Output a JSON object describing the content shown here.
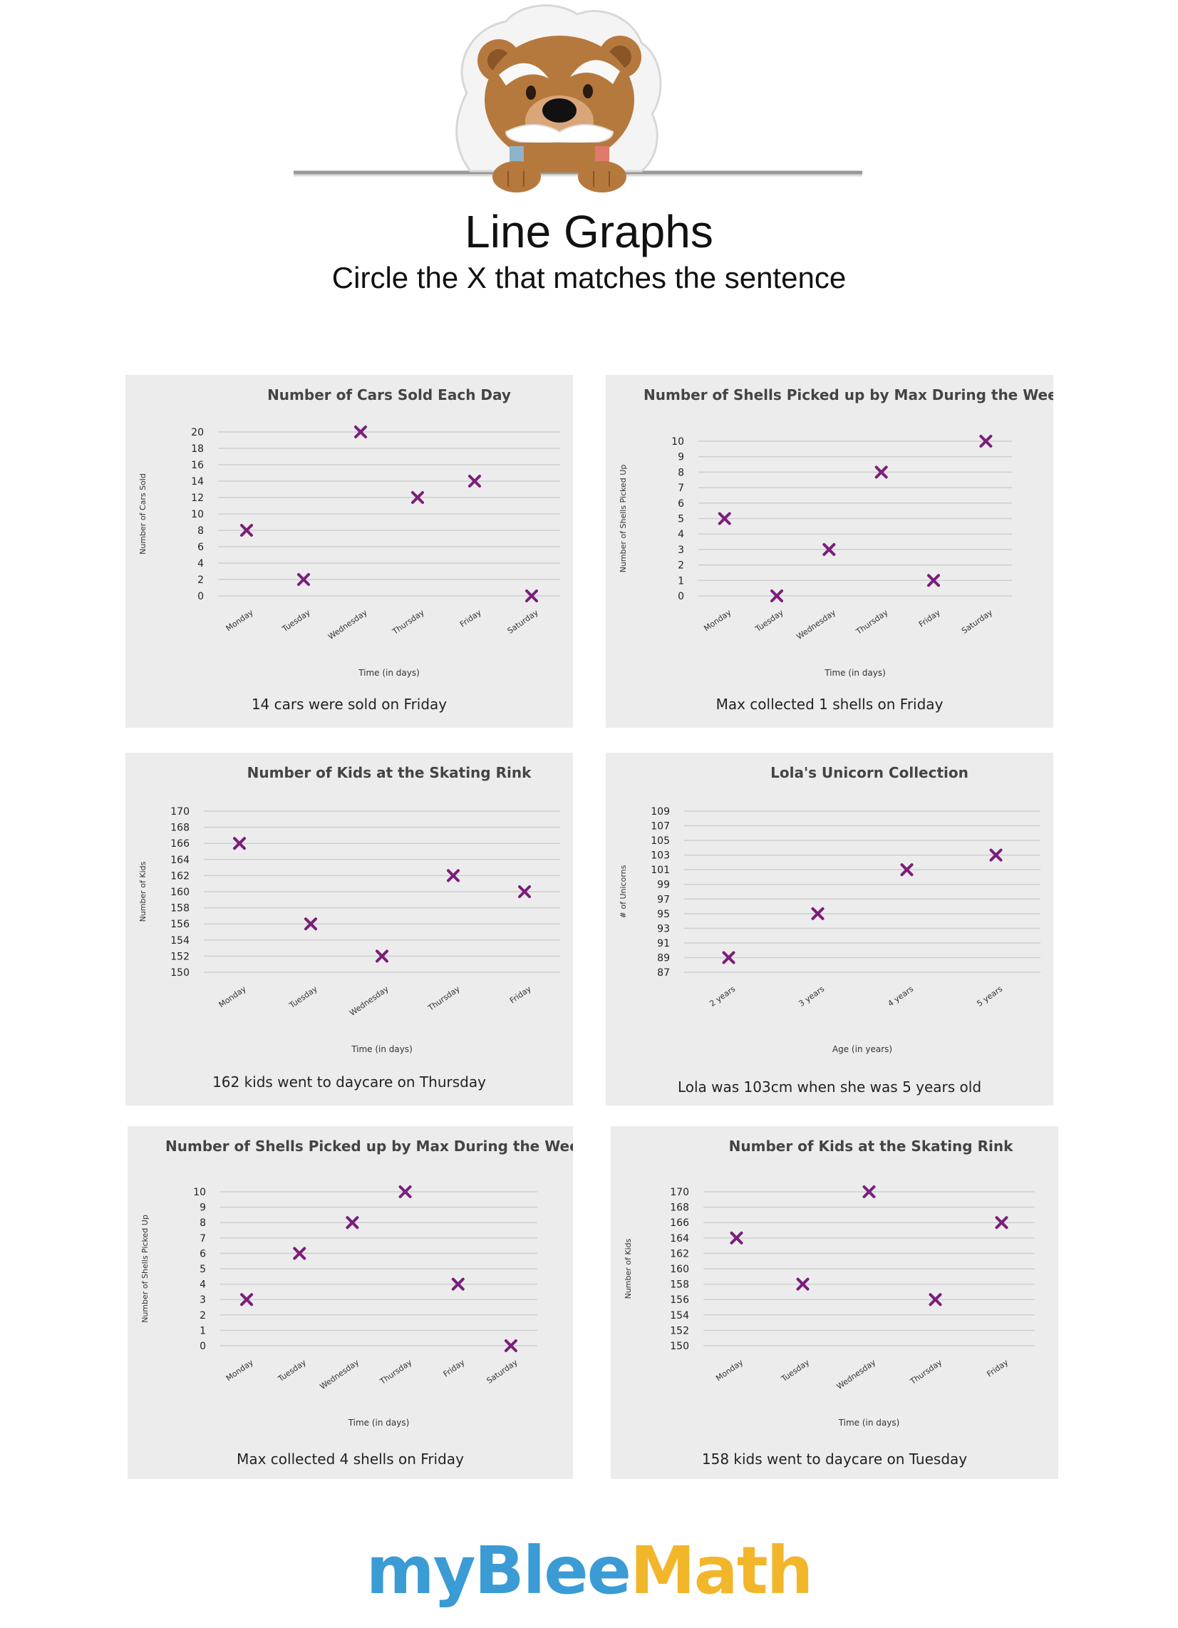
{
  "header": {
    "title": "Line Graphs",
    "subtitle": "Circle the X that matches the sentence"
  },
  "logo": {
    "part1": "myBlee",
    "part2": "Math"
  },
  "colors": {
    "marker": "#7b1e7a",
    "panel": "#ececec",
    "grid": "#cfcfcf"
  },
  "chart_data": [
    {
      "type": "scatter",
      "title": "Number of Cars Sold Each Day",
      "xlabel": "Time (in days)",
      "ylabel": "Number of Cars Sold",
      "categories": [
        "Monday",
        "Tuesday",
        "Wednesday",
        "Thursday",
        "Friday",
        "Saturday"
      ],
      "values": [
        8,
        2,
        20,
        12,
        14,
        0
      ],
      "yticks": [
        0,
        2,
        4,
        6,
        8,
        10,
        12,
        14,
        16,
        18,
        20
      ],
      "ylim": [
        0,
        20
      ],
      "grid": true,
      "caption": "14 cars were sold on Friday"
    },
    {
      "type": "scatter",
      "title": "Number of Shells Picked up by Max During the Week",
      "xlabel": "Time (in days)",
      "ylabel": "Number of Shells Picked Up",
      "categories": [
        "Monday",
        "Tuesday",
        "Wednesday",
        "Thursday",
        "Friday",
        "Saturday"
      ],
      "values": [
        5,
        0,
        3,
        8,
        1,
        10
      ],
      "yticks": [
        0,
        1,
        2,
        3,
        4,
        5,
        6,
        7,
        8,
        9,
        10
      ],
      "ylim": [
        0,
        10
      ],
      "grid": true,
      "caption": "Max collected 1 shells on Friday"
    },
    {
      "type": "scatter",
      "title": "Number of Kids at the Skating Rink",
      "xlabel": "Time (in days)",
      "ylabel": "Number of Kids",
      "categories": [
        "Monday",
        "Tuesday",
        "Wednesday",
        "Thursday",
        "Friday"
      ],
      "values": [
        166,
        156,
        152,
        162,
        160
      ],
      "yticks": [
        150,
        152,
        154,
        156,
        158,
        160,
        162,
        164,
        166,
        168,
        170
      ],
      "ylim": [
        150,
        170
      ],
      "grid": true,
      "caption": "162 kids went to daycare on Thursday"
    },
    {
      "type": "scatter",
      "title": "Lola's Unicorn Collection",
      "xlabel": "Age (in years)",
      "ylabel": "# of Unicorns",
      "categories": [
        "2 years",
        "3 years",
        "4 years",
        "5 years"
      ],
      "values": [
        89,
        95,
        101,
        103
      ],
      "yticks": [
        87,
        89,
        91,
        93,
        95,
        97,
        99,
        101,
        103,
        105,
        107,
        109
      ],
      "ylim": [
        87,
        109
      ],
      "grid": true,
      "caption": "Lola was 103cm when she was 5 years old"
    },
    {
      "type": "scatter",
      "title": "Number of Shells Picked up by Max During the Week",
      "xlabel": "Time (in days)",
      "ylabel": "Number of Shells Picked Up",
      "categories": [
        "Monday",
        "Tuesday",
        "Wednesday",
        "Thursday",
        "Friday",
        "Saturday"
      ],
      "values": [
        3,
        6,
        8,
        10,
        4,
        0
      ],
      "yticks": [
        0,
        1,
        2,
        3,
        4,
        5,
        6,
        7,
        8,
        9,
        10
      ],
      "ylim": [
        0,
        10
      ],
      "grid": true,
      "caption": "Max collected 4 shells on Friday"
    },
    {
      "type": "scatter",
      "title": "Number of Kids at the Skating Rink",
      "xlabel": "Time (in days)",
      "ylabel": "Number of Kids",
      "categories": [
        "Monday",
        "Tuesday",
        "Wednesday",
        "Thursday",
        "Friday"
      ],
      "values": [
        164,
        158,
        170,
        156,
        166
      ],
      "yticks": [
        150,
        152,
        154,
        156,
        158,
        160,
        162,
        164,
        166,
        168,
        170
      ],
      "ylim": [
        150,
        170
      ],
      "grid": true,
      "caption": "158 kids went to daycare on Tuesday"
    }
  ]
}
